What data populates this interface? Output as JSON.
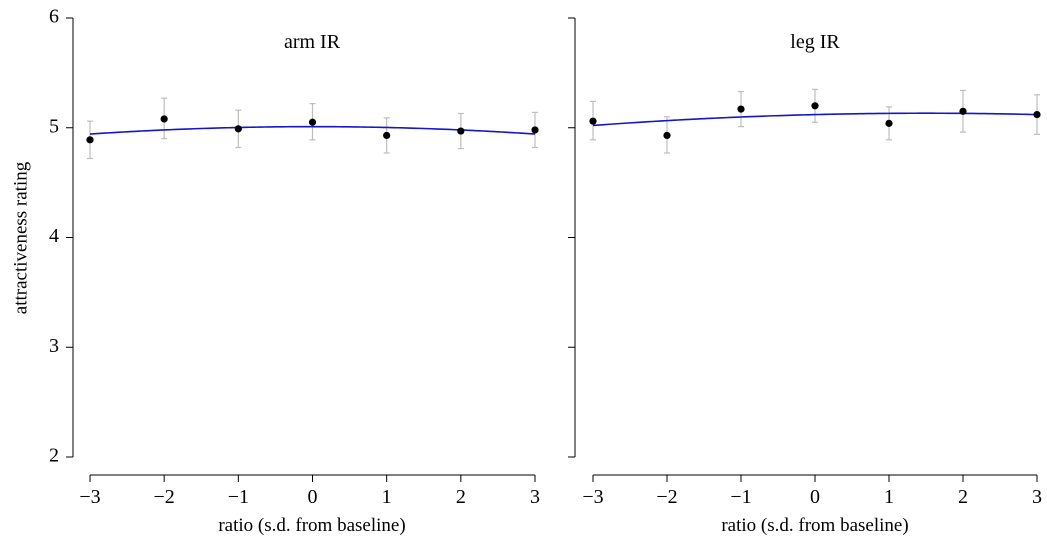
{
  "chart_data": {
    "type": "scatter",
    "shared_ylabel": "attractiveness rating",
    "colors": {
      "points": "#000000",
      "fit_line": "#1515cc",
      "error_bars": "#bdbdbd"
    },
    "panels": [
      {
        "title": "arm IR",
        "xlabel": "ratio (s.d. from baseline)",
        "xlim": [
          -3,
          3
        ],
        "ylim": [
          2,
          6
        ],
        "x_ticks": [
          -3,
          -2,
          -1,
          0,
          1,
          2,
          3
        ],
        "x_tick_labels": [
          "−3",
          "−2",
          "−1",
          "0",
          "1",
          "2",
          "3"
        ],
        "y_ticks": [
          2,
          3,
          4,
          5,
          6
        ],
        "y_tick_labels": [
          "2",
          "3",
          "4",
          "5",
          "6"
        ],
        "show_y_tick_labels": true,
        "points": [
          {
            "x": -3,
            "y": 4.89,
            "err_low": 4.72,
            "err_high": 5.06
          },
          {
            "x": -2,
            "y": 5.08,
            "err_low": 4.9,
            "err_high": 5.27
          },
          {
            "x": -1,
            "y": 4.99,
            "err_low": 4.82,
            "err_high": 5.16
          },
          {
            "x": 0,
            "y": 5.05,
            "err_low": 4.89,
            "err_high": 5.22
          },
          {
            "x": 1,
            "y": 4.93,
            "err_low": 4.77,
            "err_high": 5.09
          },
          {
            "x": 2,
            "y": 4.97,
            "err_low": 4.81,
            "err_high": 5.13
          },
          {
            "x": 3,
            "y": 4.98,
            "err_low": 4.82,
            "err_high": 5.14
          }
        ],
        "fit_quadratic": {
          "a": 5.01,
          "b": 0.0,
          "c": -0.0075
        }
      },
      {
        "title": "leg IR",
        "xlabel": "ratio (s.d. from baseline)",
        "xlim": [
          -3,
          3
        ],
        "ylim": [
          2,
          6
        ],
        "x_ticks": [
          -3,
          -2,
          -1,
          0,
          1,
          2,
          3
        ],
        "x_tick_labels": [
          "−3",
          "−2",
          "−1",
          "0",
          "1",
          "2",
          "3"
        ],
        "y_ticks": [
          2,
          3,
          4,
          5,
          6
        ],
        "show_y_tick_labels": false,
        "points": [
          {
            "x": -3,
            "y": 5.06,
            "err_low": 4.89,
            "err_high": 5.24
          },
          {
            "x": -2,
            "y": 4.93,
            "err_low": 4.77,
            "err_high": 5.1
          },
          {
            "x": -1,
            "y": 5.17,
            "err_low": 5.01,
            "err_high": 5.33
          },
          {
            "x": 0,
            "y": 5.2,
            "err_low": 5.05,
            "err_high": 5.35
          },
          {
            "x": 1,
            "y": 5.04,
            "err_low": 4.89,
            "err_high": 5.19
          },
          {
            "x": 2,
            "y": 5.15,
            "err_low": 4.96,
            "err_high": 5.34
          },
          {
            "x": 3,
            "y": 5.12,
            "err_low": 4.94,
            "err_high": 5.3
          }
        ],
        "fit_quadratic": {
          "a": 5.12,
          "b": 0.0165,
          "c": -0.0055
        }
      }
    ]
  }
}
